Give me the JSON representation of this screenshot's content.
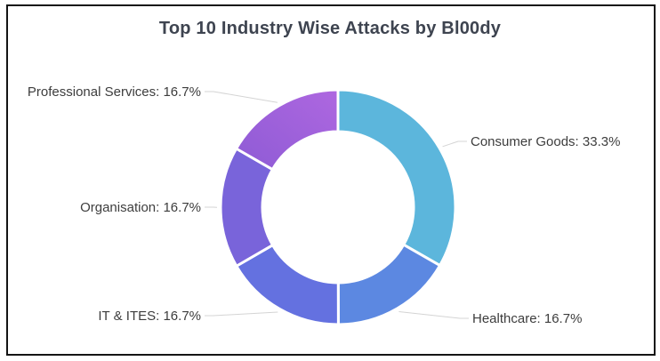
{
  "chart_title": "Top 10 Industry Wise Attacks by Bl00dy",
  "colors": {
    "background": "#FFFFFF",
    "border": "#141414",
    "title_text": "#3E4450",
    "label_text": "#3D3D3D",
    "leader_line": "#D4D4D4",
    "slice_separator": "#FFFFFF"
  },
  "chart_data": {
    "type": "pie",
    "subtype": "donut",
    "title": "Top 10 Industry Wise Attacks by Bl00dy",
    "start_angle_deg": 0,
    "direction": "clockwise",
    "inner_radius_ratio": 0.64,
    "legend_position": "none",
    "labels_outside_with_leader_lines": true,
    "slices": [
      {
        "label": "Consumer Goods",
        "value_pct": 33.3,
        "display": "Consumer Goods: 33.3%",
        "color": "#5CB6DC",
        "color_end": "#5CB6DC"
      },
      {
        "label": "Healthcare",
        "value_pct": 16.7,
        "display": "Healthcare: 16.7%",
        "color": "#5C88E1",
        "color_end": "#5C88E1"
      },
      {
        "label": "IT & ITES",
        "value_pct": 16.7,
        "display": "IT & ITES: 16.7%",
        "color": "#6471E0",
        "color_end": "#6471E0"
      },
      {
        "label": "Organisation",
        "value_pct": 16.7,
        "display": "Organisation: 16.7%",
        "color": "#7964DA",
        "color_end": "#7964DA"
      },
      {
        "label": "Professional Services",
        "value_pct": 16.7,
        "display": "Professional Services: 16.7%",
        "color": "#8E5BD5",
        "color_end": "#AE67E0"
      }
    ]
  }
}
